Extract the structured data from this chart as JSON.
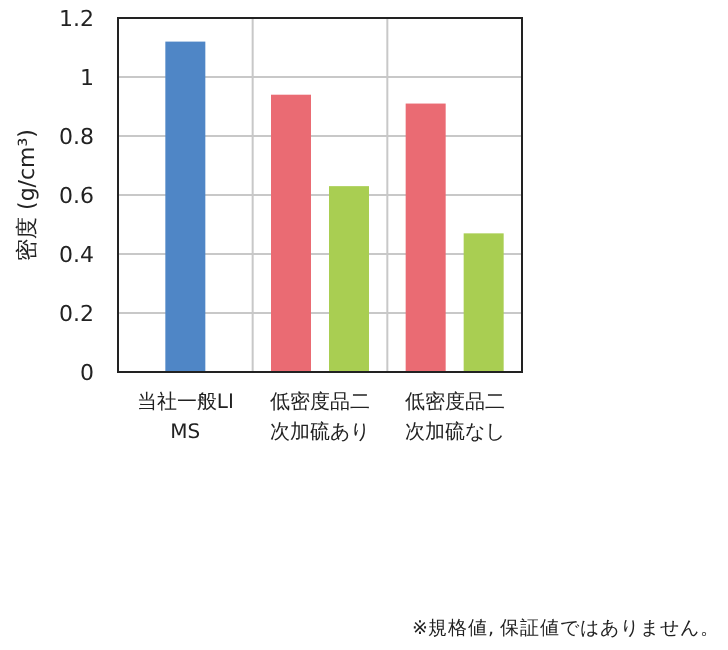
{
  "chart_data": {
    "type": "bar",
    "ylabel": "密度 (g/cm³)",
    "categories": [
      "当社一般LIMS",
      "低密度品二次加硫あり",
      "低密度品二次加硫なし"
    ],
    "series": [
      {
        "color": "#4f86c6",
        "values": [
          1.12,
          null,
          null
        ]
      },
      {
        "color": "#ea6b73",
        "values": [
          null,
          0.94,
          0.91
        ]
      },
      {
        "color": "#a9ce52",
        "values": [
          null,
          0.63,
          0.47
        ]
      }
    ],
    "ylim": [
      0,
      1.2
    ],
    "yticks": [
      0,
      0.2,
      0.4,
      0.6,
      0.8,
      1,
      1.2
    ],
    "grid": true,
    "annotations": [
      "※規格値, 保証値ではありません。"
    ]
  }
}
